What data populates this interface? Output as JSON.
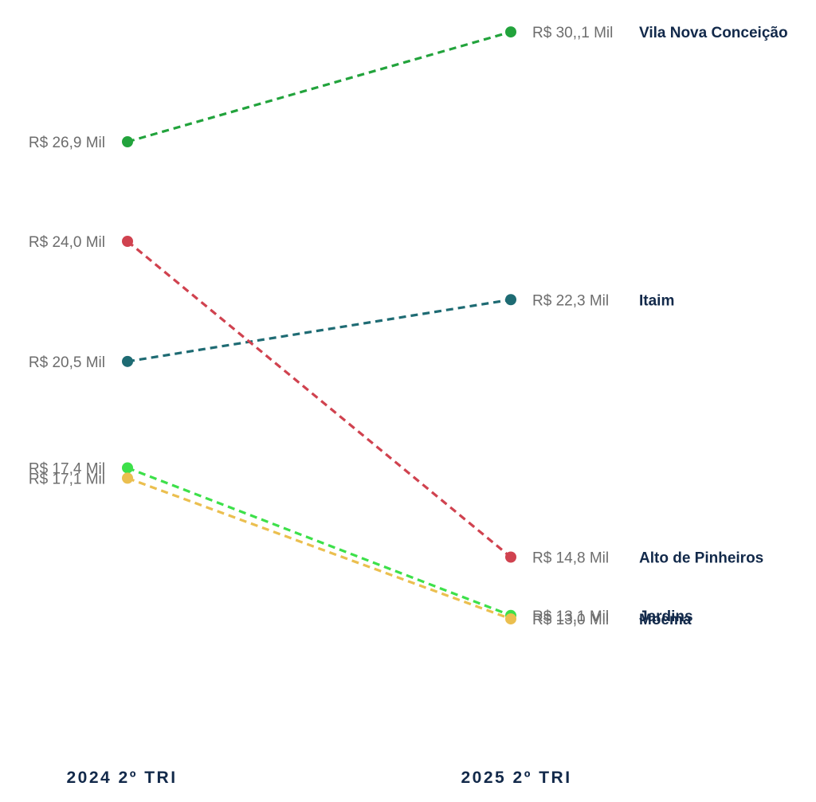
{
  "chart_data": {
    "type": "line",
    "chart_style": "slope",
    "x": [
      "2024 2º TRI",
      "2025 2º TRI"
    ],
    "unit": "R$ Mil",
    "ylim": [
      13,
      30.1
    ],
    "grid": false,
    "legend": "none",
    "series": [
      {
        "name": "Vila Nova Conceição",
        "values": [
          26.9,
          30.1
        ],
        "value_labels": [
          "R$ 26,9 Mil",
          "R$ 30,,1 Mil"
        ],
        "color": "#22a33c"
      },
      {
        "name": "Itaim",
        "values": [
          20.5,
          22.3
        ],
        "value_labels": [
          "R$ 20,5 Mil",
          "R$ 22,3 Mil"
        ],
        "color": "#1e6b73"
      },
      {
        "name": "Alto de Pinheiros",
        "values": [
          24.0,
          14.8
        ],
        "value_labels": [
          "R$ 24,0 Mil",
          "R$ 14,8 Mil"
        ],
        "color": "#d0424f"
      },
      {
        "name": "Jardins",
        "values": [
          17.4,
          13.1
        ],
        "value_labels": [
          "R$ 17,4 Mil",
          "R$ 13,1 Mil"
        ],
        "color": "#3de04a"
      },
      {
        "name": "Moema",
        "values": [
          17.1,
          13.0
        ],
        "value_labels": [
          "R$ 17,1 Mil",
          "R$ 13,0 Mil"
        ],
        "color": "#ebbf4f"
      }
    ]
  }
}
